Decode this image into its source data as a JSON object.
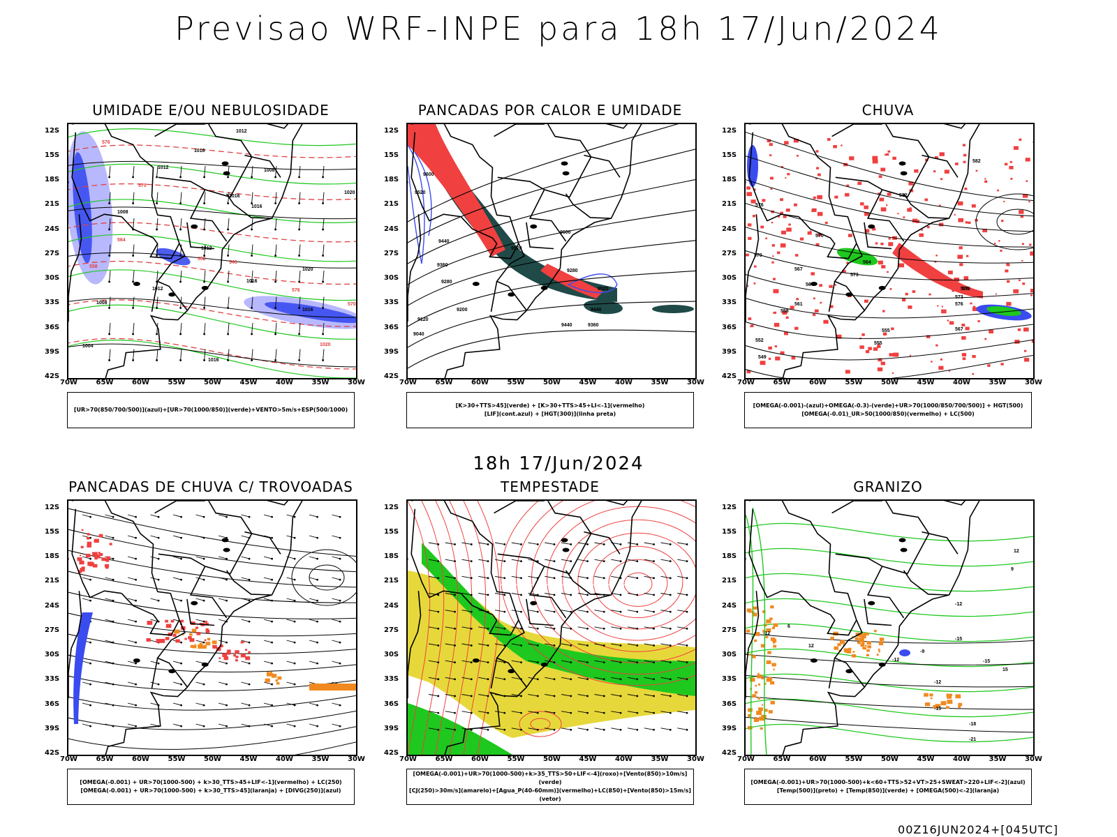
{
  "header": {
    "title": "Previsao WRF-INPE  para 18h 17/Jun/2024",
    "mid_title": "18h 17/Jun/2024",
    "footer": "00Z16JUN2024+[045UTC]"
  },
  "axes": {
    "lat_labels": [
      "12S",
      "15S",
      "18S",
      "21S",
      "24S",
      "27S",
      "30S",
      "33S",
      "36S",
      "39S",
      "42S"
    ],
    "lon_labels": [
      "70W",
      "65W",
      "60W",
      "55W",
      "50W",
      "45W",
      "40W",
      "35W",
      "30W"
    ]
  },
  "panels": [
    {
      "title": "UMIDADE E/OU NEBULOSIDADE",
      "legend": [
        "[UR>70(850/700/500)](azul)+[UR>70(1000/850)](verde)+VENTO>5m/s+ESP(500/1000)"
      ]
    },
    {
      "title": "PANCADAS POR CALOR E UMIDADE",
      "legend": [
        "[K>30+TTS>45](verde) + [K>30+TTS>45+LI<-1](vermelho)",
        "[LIF](cont.azul) + [HGT(300)](linha preta)"
      ]
    },
    {
      "title": "CHUVA",
      "legend": [
        "[OMEGA(-0.001)-(azul)+OMEGA(-0.3)-(verde)+UR>70(1000/850/700/500)] + HGT(500)",
        "[OMEGA(-0.01)_UR>50(1000/850)(vermelho) + LC(500)"
      ]
    },
    {
      "title": "PANCADAS DE CHUVA C/ TROVOADAS",
      "legend": [
        "[OMEGA(-0.001) + UR>70(1000-500) + k>30_TTS>45+LIF<-1](vermelho) + LC(250)",
        "[OMEGA(-0.001) + UR>70(1000-500) + k>30_TTS>45](laranja) + [DIVG(250)](azul)"
      ]
    },
    {
      "title": "TEMPESTADE",
      "legend": [
        "[OMEGA(-0.001)+UR>70(1000-500)+k>35_TTS>50+LIF<-4](roxo)+[Vento(850)>10m/s](verde)",
        "[CJ(250)>30m/s](amarelo)+[Agua_P(40-60mm)](vermelho)+LC(850)+[Vento(850)>15m/s](vetor)"
      ]
    },
    {
      "title": "GRANIZO",
      "legend": [
        "[OMEGA(-0.001)+UR>70(1000-500)+k<60+TTS>52+VT>25+SWEAT>220+LIF<-2](azul)",
        "[Temp(500)](preto) + [Temp(850)](verde) + [OMEGA(500)<-2](laranja)"
      ]
    }
  ],
  "contour_labels": {
    "p1": [
      "1012",
      "1016",
      "1008",
      "1012",
      "1016",
      "1016",
      "1020",
      "1020",
      "1016",
      "1016",
      "1008",
      "1012",
      "1012",
      "1008",
      "1004",
      "1016",
      "1020",
      "576",
      "570",
      "564",
      "558",
      "552",
      "546",
      "576",
      "570"
    ],
    "p2": [
      "9600",
      "9520",
      "9440",
      "9360",
      "9280",
      "9200",
      "9120",
      "9040",
      "9600",
      "9520",
      "9440",
      "9360",
      "9280",
      "9520",
      "9440"
    ],
    "p3": [
      "582",
      "582",
      "576",
      "570",
      "564",
      "567",
      "564",
      "558",
      "555",
      "555",
      "573",
      "576",
      "570",
      "561",
      "552",
      "549",
      "567",
      "579",
      "576",
      "573"
    ],
    "p6": [
      "-12",
      "-9",
      "-12",
      "-15",
      "-15",
      "-12",
      "-15",
      "-18",
      "-21",
      "-12",
      "6",
      "9",
      "12",
      "15",
      "12"
    ]
  },
  "colors": {
    "blue": "#3a4cf0",
    "light_blue": "#b0b0ff",
    "green": "#1ec81e",
    "red": "#f04040",
    "dark_teal": "#1f4a48",
    "yellow": "#e6d83a",
    "orange": "#f08a20",
    "dashed_red": "#e04040"
  }
}
